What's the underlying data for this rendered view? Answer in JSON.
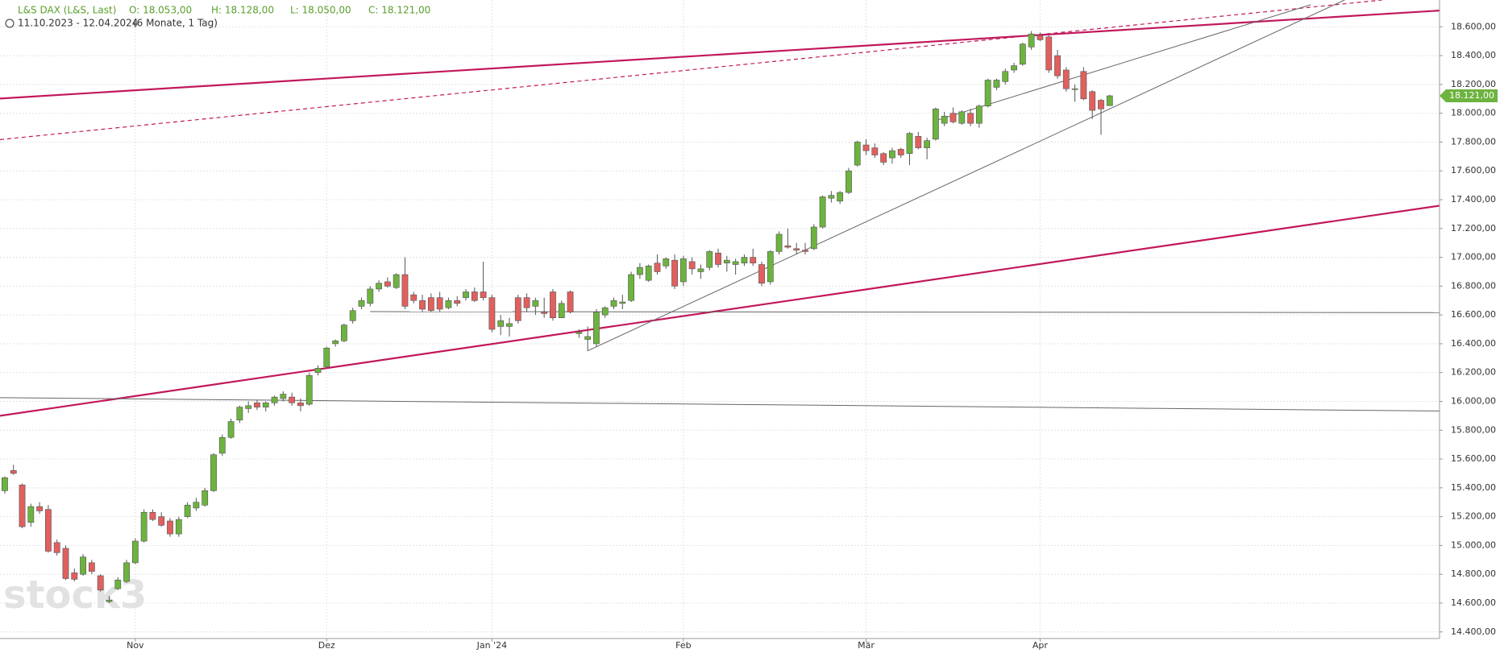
{
  "chart_data": {
    "type": "candlestick",
    "title": "L&S DAX (L&S, Last)",
    "ohlc_header": [
      "O: 18.053,00",
      "H: 18.128,00",
      "L: 18.050,00",
      "C: 18.121,00"
    ],
    "range": "11.10.2023 - 12.04.2024",
    "period": "(6 Monate, 1 Tag)",
    "watermark": "stock3",
    "up_color": "#6db33f",
    "down_color": "#e0605e",
    "grid": true,
    "categories": [
      null,
      null,
      null,
      null,
      null,
      null,
      null,
      null,
      null,
      null,
      null,
      null,
      null,
      null,
      null,
      "Nov",
      null,
      null,
      null,
      null,
      null,
      null,
      null,
      null,
      null,
      null,
      null,
      null,
      null,
      null,
      null,
      null,
      null,
      null,
      null,
      null,
      null,
      "Dez",
      null,
      null,
      null,
      null,
      null,
      null,
      null,
      null,
      null,
      null,
      null,
      null,
      null,
      null,
      null,
      null,
      null,
      null,
      "Jan '24",
      null,
      null,
      null,
      null,
      null,
      null,
      null,
      null,
      null,
      null,
      null,
      null,
      null,
      null,
      null,
      null,
      null,
      null,
      null,
      null,
      null,
      "Feb",
      null,
      null,
      null,
      null,
      null,
      null,
      null,
      null,
      null,
      null,
      null,
      null,
      null,
      null,
      null,
      null,
      null,
      null,
      null,
      null,
      "Mär",
      null,
      null,
      null,
      null,
      null,
      null,
      null,
      null,
      null,
      null,
      null,
      null,
      null,
      null,
      null,
      null,
      null,
      null,
      null,
      "Apr",
      null,
      null,
      null,
      null,
      null,
      null,
      null,
      null
    ],
    "ohlc": [
      [
        15380,
        15480,
        15360,
        15470
      ],
      [
        15520,
        15560,
        15490,
        15500
      ],
      [
        15420,
        15430,
        15120,
        15130
      ],
      [
        15160,
        15290,
        15130,
        15270
      ],
      [
        15270,
        15300,
        15220,
        15240
      ],
      [
        15250,
        15280,
        14950,
        14960
      ],
      [
        15020,
        15040,
        14930,
        14950
      ],
      [
        14980,
        15000,
        14760,
        14770
      ],
      [
        14810,
        14840,
        14750,
        14765
      ],
      [
        14800,
        14940,
        14790,
        14920
      ],
      [
        14880,
        14900,
        14800,
        14820
      ],
      [
        14790,
        14800,
        14680,
        14690
      ],
      [
        14610,
        14650,
        14600,
        14620
      ],
      [
        14700,
        14780,
        14690,
        14760
      ],
      [
        14750,
        14900,
        14740,
        14880
      ],
      [
        14880,
        15050,
        14870,
        15030
      ],
      [
        15030,
        15250,
        15020,
        15230
      ],
      [
        15230,
        15250,
        15170,
        15180
      ],
      [
        15200,
        15230,
        15130,
        15140
      ],
      [
        15170,
        15190,
        15060,
        15080
      ],
      [
        15080,
        15200,
        15060,
        15180
      ],
      [
        15200,
        15300,
        15190,
        15280
      ],
      [
        15260,
        15330,
        15240,
        15300
      ],
      [
        15280,
        15400,
        15270,
        15380
      ],
      [
        15380,
        15640,
        15370,
        15630
      ],
      [
        15640,
        15770,
        15620,
        15750
      ],
      [
        15750,
        15880,
        15740,
        15860
      ],
      [
        15870,
        15970,
        15850,
        15960
      ],
      [
        15950,
        16000,
        15920,
        15970
      ],
      [
        15990,
        16010,
        15940,
        15960
      ],
      [
        15960,
        16000,
        15930,
        15990
      ],
      [
        15990,
        16040,
        15970,
        16030
      ],
      [
        16020,
        16070,
        16000,
        16050
      ],
      [
        16030,
        16060,
        15970,
        15990
      ],
      [
        15990,
        16020,
        15930,
        15970
      ],
      [
        15980,
        16200,
        15970,
        16180
      ],
      [
        16200,
        16250,
        16180,
        16230
      ],
      [
        16240,
        16380,
        16230,
        16370
      ],
      [
        16400,
        16430,
        16380,
        16420
      ],
      [
        16420,
        16540,
        16410,
        16530
      ],
      [
        16560,
        16650,
        16540,
        16630
      ],
      [
        16660,
        16720,
        16640,
        16700
      ],
      [
        16680,
        16800,
        16660,
        16780
      ],
      [
        16780,
        16840,
        16760,
        16820
      ],
      [
        16830,
        16860,
        16790,
        16800
      ],
      [
        16790,
        16890,
        16780,
        16880
      ],
      [
        16880,
        17000,
        16640,
        16660
      ],
      [
        16740,
        16760,
        16680,
        16700
      ],
      [
        16700,
        16740,
        16620,
        16640
      ],
      [
        16720,
        16750,
        16620,
        16630
      ],
      [
        16720,
        16760,
        16620,
        16640
      ],
      [
        16650,
        16720,
        16640,
        16700
      ],
      [
        16700,
        16730,
        16660,
        16680
      ],
      [
        16720,
        16780,
        16700,
        16760
      ],
      [
        16760,
        16790,
        16690,
        16700
      ],
      [
        16760,
        16970,
        16700,
        16720
      ],
      [
        16720,
        16740,
        16480,
        16500
      ],
      [
        16520,
        16600,
        16460,
        16560
      ],
      [
        16520,
        16580,
        16450,
        16540
      ],
      [
        16720,
        16740,
        16540,
        16560
      ],
      [
        16720,
        16750,
        16620,
        16650
      ],
      [
        16660,
        16720,
        16600,
        16700
      ],
      [
        16620,
        16720,
        16580,
        16610
      ],
      [
        16760,
        16780,
        16560,
        16580
      ],
      [
        16580,
        16700,
        16580,
        16680
      ],
      [
        16760,
        16770,
        16610,
        16620
      ],
      [
        16470,
        16500,
        16440,
        16480
      ],
      [
        16430,
        16520,
        16350,
        16450
      ],
      [
        16400,
        16640,
        16380,
        16620
      ],
      [
        16600,
        16660,
        16580,
        16650
      ],
      [
        16660,
        16720,
        16640,
        16700
      ],
      [
        16680,
        16740,
        16640,
        16690
      ],
      [
        16700,
        16900,
        16690,
        16880
      ],
      [
        16880,
        16960,
        16850,
        16930
      ],
      [
        16840,
        16950,
        16830,
        16940
      ],
      [
        16960,
        17020,
        16880,
        16900
      ],
      [
        16940,
        17000,
        16920,
        16990
      ],
      [
        16980,
        17020,
        16780,
        16800
      ],
      [
        16830,
        17010,
        16800,
        16990
      ],
      [
        16970,
        17000,
        16880,
        16920
      ],
      [
        16900,
        16950,
        16850,
        16920
      ],
      [
        16930,
        17050,
        16910,
        17040
      ],
      [
        17030,
        17060,
        16930,
        16950
      ],
      [
        16960,
        17010,
        16900,
        16980
      ],
      [
        16950,
        16990,
        16880,
        16970
      ],
      [
        16960,
        17020,
        16940,
        17000
      ],
      [
        17000,
        17060,
        16940,
        16960
      ],
      [
        16950,
        16970,
        16800,
        16820
      ],
      [
        16830,
        17050,
        16810,
        17040
      ],
      [
        17040,
        17180,
        17020,
        17160
      ],
      [
        17080,
        17200,
        17060,
        17070
      ],
      [
        17060,
        17100,
        17020,
        17050
      ],
      [
        17050,
        17100,
        17020,
        17040
      ],
      [
        17060,
        17230,
        17050,
        17210
      ],
      [
        17210,
        17430,
        17200,
        17420
      ],
      [
        17410,
        17460,
        17380,
        17430
      ],
      [
        17390,
        17460,
        17370,
        17450
      ],
      [
        17450,
        17620,
        17440,
        17600
      ],
      [
        17640,
        17810,
        17630,
        17800
      ],
      [
        17780,
        17820,
        17710,
        17740
      ],
      [
        17760,
        17790,
        17690,
        17710
      ],
      [
        17720,
        17730,
        17640,
        17660
      ],
      [
        17690,
        17760,
        17650,
        17740
      ],
      [
        17750,
        17760,
        17690,
        17710
      ],
      [
        17720,
        17870,
        17640,
        17860
      ],
      [
        17840,
        17870,
        17750,
        17760
      ],
      [
        17760,
        17830,
        17680,
        17810
      ],
      [
        17820,
        18040,
        17810,
        18030
      ],
      [
        17930,
        18010,
        17910,
        17980
      ],
      [
        18000,
        18040,
        17930,
        17940
      ],
      [
        17930,
        18020,
        17920,
        18010
      ],
      [
        18000,
        18030,
        17910,
        17930
      ],
      [
        17930,
        18060,
        17900,
        18050
      ],
      [
        18050,
        18240,
        18040,
        18230
      ],
      [
        18180,
        18240,
        18160,
        18230
      ],
      [
        18220,
        18310,
        18200,
        18290
      ],
      [
        18300,
        18350,
        18280,
        18330
      ],
      [
        18340,
        18490,
        18330,
        18480
      ],
      [
        18460,
        18570,
        18440,
        18550
      ],
      [
        18540,
        18560,
        18500,
        18510
      ],
      [
        18530,
        18540,
        18280,
        18300
      ],
      [
        18400,
        18440,
        18240,
        18260
      ],
      [
        18300,
        18320,
        18150,
        18170
      ],
      [
        18170,
        18200,
        18080,
        18170
      ],
      [
        18290,
        18320,
        18090,
        18100
      ],
      [
        18150,
        18160,
        17960,
        18020
      ],
      [
        18090,
        18100,
        17850,
        18030
      ],
      [
        18053,
        18128,
        18050,
        18121
      ]
    ],
    "ylim": [
      14354,
      18786
    ],
    "yticks": [
      {
        "value": 14400,
        "label": "14.400,00"
      },
      {
        "value": 14600,
        "label": "14.600,00"
      },
      {
        "value": 14800,
        "label": "14.800,00"
      },
      {
        "value": 15000,
        "label": "15.000,00"
      },
      {
        "value": 15200,
        "label": "15.200,00"
      },
      {
        "value": 15400,
        "label": "15.400,00"
      },
      {
        "value": 15600,
        "label": "15.600,00"
      },
      {
        "value": 15800,
        "label": "15.800,00"
      },
      {
        "value": 16000,
        "label": "16.000,00"
      },
      {
        "value": 16200,
        "label": "16.200,00"
      },
      {
        "value": 16400,
        "label": "16.400,00"
      },
      {
        "value": 16600,
        "label": "16.600,00"
      },
      {
        "value": 16800,
        "label": "16.800,00"
      },
      {
        "value": 17000,
        "label": "17.000,00"
      },
      {
        "value": 17200,
        "label": "17.200,00"
      },
      {
        "value": 17400,
        "label": "17.400,00"
      },
      {
        "value": 17600,
        "label": "17.600,00"
      },
      {
        "value": 17800,
        "label": "17.800,00"
      },
      {
        "value": 18000,
        "label": "18.000,00"
      },
      {
        "value": 18200,
        "label": "18.200,00"
      },
      {
        "value": 18400,
        "label": "18.400,00"
      },
      {
        "value": 18600,
        "label": "18.600,00"
      }
    ],
    "last_price": 18121,
    "last_price_label": "18.121,00",
    "drawings": [
      {
        "x": [
          -0.55,
          165
        ],
        "y": [
          18102,
          18713
        ],
        "color": "#c2185b",
        "dashed": false,
        "width": 2.2
      },
      {
        "x": [
          -0.55,
          158.3
        ],
        "y": [
          17817,
          18786
        ],
        "color": "#c2185b",
        "dashed": true,
        "width": 1.2
      },
      {
        "x": [
          -0.55,
          165
        ],
        "y": [
          15900,
          17359
        ],
        "color": "#c2185b",
        "dashed": false,
        "width": 2.2
      },
      {
        "x": [
          42,
          165
        ],
        "y": [
          16623,
          16616
        ],
        "color": "#666666",
        "dashed": false,
        "width": 1
      },
      {
        "x": [
          -0.55,
          165
        ],
        "y": [
          16026,
          15933
        ],
        "color": "#666666",
        "dashed": false,
        "width": 1
      },
      {
        "x": [
          67,
          154
        ],
        "y": [
          16351,
          18786
        ],
        "color": "#666666",
        "dashed": false,
        "width": 1
      },
      {
        "x": [
          106.7,
          150.1
        ],
        "y": [
          17943,
          18753
        ],
        "color": "#666666",
        "dashed": false,
        "width": 1
      }
    ]
  }
}
